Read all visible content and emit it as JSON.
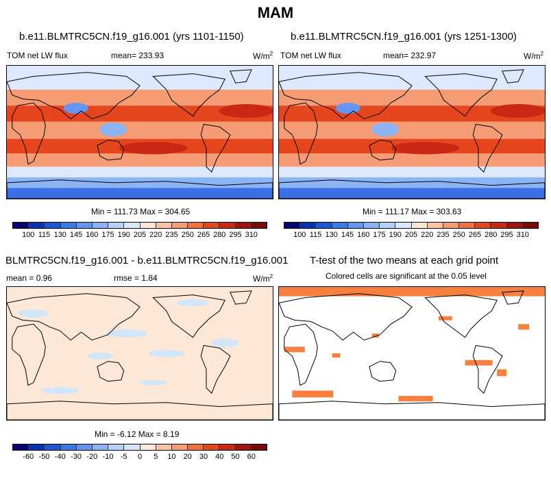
{
  "title": "MAM",
  "panels": {
    "p1": {
      "title": "b.e11.BLMTRC5CN.f19_g16.001 (yrs 1101-1150)",
      "left_label": "TOM net LW flux",
      "mean_label": "mean= 233.93",
      "units": "W/m",
      "units_sup": "2",
      "minmax": "Min = 111.73 Max = 304.65"
    },
    "p2": {
      "title": "b.e11.BLMTRC5CN.f19_g16.001 (yrs 1251-1300)",
      "left_label": "TOM net LW flux",
      "mean_label": "mean= 232.97",
      "units": "W/m",
      "units_sup": "2",
      "minmax": "Min = 111.17 Max = 303.63"
    },
    "p3": {
      "title": "BLMTRC5CN.f19_g16.001 - b.e11.BLMTRC5CN.f19_g16.001",
      "mean_label": "mean =   0.96",
      "rmse_label": "rmse =   1.84",
      "units": "W/m",
      "units_sup": "2",
      "minmax": "Min =  -6.12 Max =   8.19"
    },
    "p4": {
      "title": "T-test of the two means at each grid point",
      "subtitle": "Colored cells are significant at the 0.05 level"
    }
  },
  "chart_data": [
    {
      "type": "heatmap",
      "title": "b.e11.BLMTRC5CN.f19_g16.001 (yrs 1101-1150)",
      "variable": "TOM net LW flux",
      "units": "W/m2",
      "mean": 233.93,
      "min": 111.73,
      "max": 304.65,
      "colorbar_levels": [
        "100",
        "115",
        "130",
        "145",
        "160",
        "175",
        "190",
        "205",
        "220",
        "235",
        "250",
        "265",
        "280",
        "295",
        "310"
      ]
    },
    {
      "type": "heatmap",
      "title": "b.e11.BLMTRC5CN.f19_g16.001 (yrs 1251-1300)",
      "variable": "TOM net LW flux",
      "units": "W/m2",
      "mean": 232.97,
      "min": 111.17,
      "max": 303.63,
      "colorbar_levels": [
        "100",
        "115",
        "130",
        "145",
        "160",
        "175",
        "190",
        "205",
        "220",
        "235",
        "250",
        "265",
        "280",
        "295",
        "310"
      ]
    },
    {
      "type": "heatmap",
      "title": "BLMTRC5CN.f19_g16.001 - b.e11.BLMTRC5CN.f19_g16.001",
      "units": "W/m2",
      "mean": 0.96,
      "rmse": 1.84,
      "min": -6.12,
      "max": 8.19,
      "colorbar_levels": [
        "-60",
        "-50",
        "-40",
        "-30",
        "-20",
        "-10",
        "-5",
        "0",
        "5",
        "10",
        "20",
        "30",
        "40",
        "50",
        "60"
      ]
    },
    {
      "type": "heatmap",
      "title": "T-test of the two means at each grid point",
      "subtitle": "Colored cells are significant at the 0.05 level"
    }
  ],
  "colorbar": {
    "abs_colors": [
      "#08066e",
      "#0a30b4",
      "#1e55d2",
      "#3c7ae6",
      "#6496f0",
      "#8cb4f5",
      "#b4d2fa",
      "#dce9fc",
      "#fde7d6",
      "#f8c4a5",
      "#f59c74",
      "#f0703f",
      "#e6461e",
      "#c82814",
      "#a01410",
      "#780a0a"
    ],
    "diff_colors": [
      "#08066e",
      "#0a30b4",
      "#1e55d2",
      "#3c7ae6",
      "#6496f0",
      "#8cb4f5",
      "#b4d2fa",
      "#d2e6fa",
      "#fde7d6",
      "#f8c4a5",
      "#f59c74",
      "#f0703f",
      "#e6461e",
      "#c82814",
      "#a01410",
      "#780a0a"
    ]
  },
  "map_colors": {
    "ocean_polar": "#3c6ee6",
    "subpolar": "#8cb4f5",
    "midlat": "#dce9fc",
    "subtropic": "#f59c74",
    "tropic_band": "#e6461e",
    "warm_pool": "#c82814",
    "cold_spot": "#6496f0",
    "diff_bg": "#fde7d6",
    "diff_neg": "#d2e6fa",
    "sig": "#f58040",
    "coast": "#000000"
  }
}
